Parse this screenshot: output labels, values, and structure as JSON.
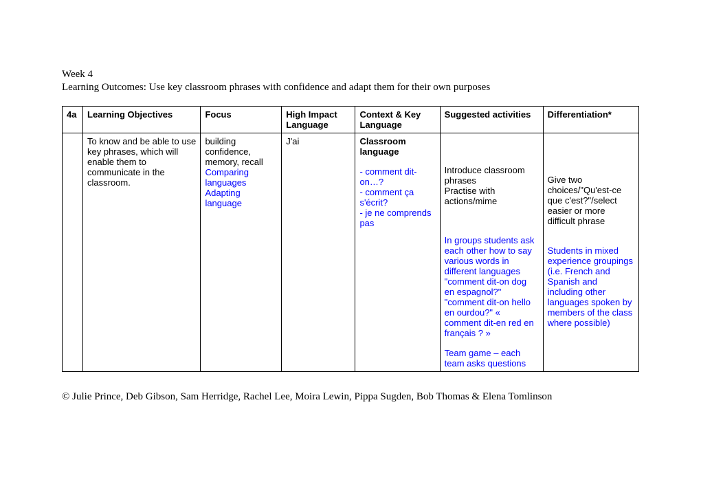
{
  "header": {
    "week": "Week 4",
    "outcomes": "Learning Outcomes: Use key classroom phrases with confidence and adapt them for their own purposes"
  },
  "table": {
    "headers": {
      "id": "4a",
      "objectives": "Learning Objectives",
      "focus": "Focus",
      "hil": "High Impact Language",
      "context": "Context & Key Language",
      "activities": "Suggested activities",
      "diff": "Differentiation*"
    },
    "row": {
      "objectives": "To know and be able to use key phrases, which will enable them to communicate in the classroom.",
      "focus_black": "building confidence, memory, recall",
      "focus_blue1": "Comparing languages",
      "focus_blue2": "Adapting language",
      "hil": "J'ai",
      "context_title": "Classroom language",
      "context_l1": "- comment dit-on…?",
      "context_l2": "- comment ça s'écrit?",
      "context_l3": "- je ne comprends pas",
      "act_black1": "Introduce classroom phrases",
      "act_black2": "Practise with actions/mime",
      "act_blue1": "In groups students ask each other how to say various words in different languages \"comment dit-on dog en espagnol?\" \"comment dit-on hello en ourdou?\" « comment dit-en red en français ? »",
      "act_blue2": "Team game – each team asks questions",
      "diff_black": "Give two choices/\"Qu'est-ce que c'est?\"/select easier or more difficult phrase",
      "diff_blue": "Students in mixed experience groupings (i.e. French and Spanish and including other languages spoken by members of the class where possible)"
    }
  },
  "footer": "© Julie Prince, Deb Gibson, Sam Herridge, Rachel Lee, Moira Lewin,  Pippa Sugden, Bob Thomas & Elena Tomlinson"
}
